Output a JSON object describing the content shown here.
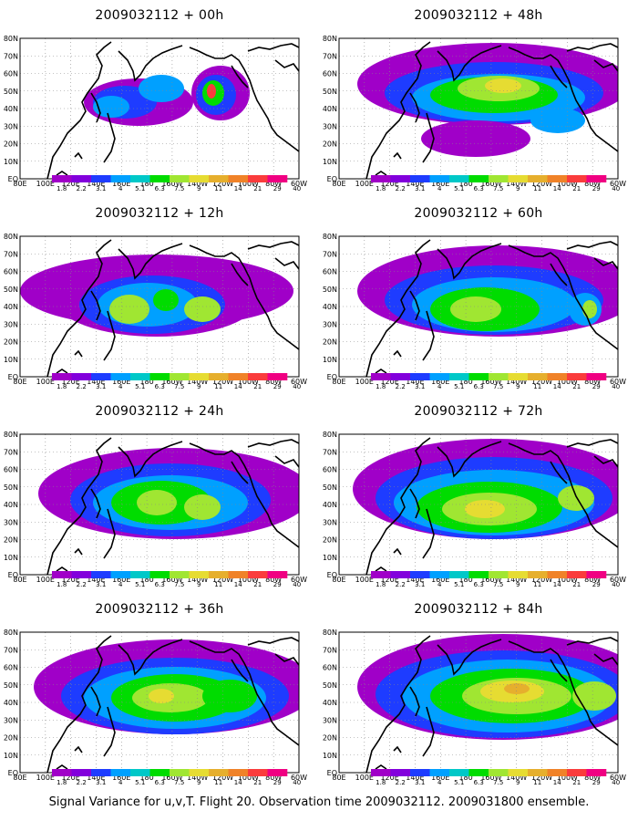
{
  "panels": [
    {
      "title": "2009032112 + 00h"
    },
    {
      "title": "2009032112 + 48h"
    },
    {
      "title": "2009032112 + 12h"
    },
    {
      "title": "2009032112 + 60h"
    },
    {
      "title": "2009032112 + 24h"
    },
    {
      "title": "2009032112 + 72h"
    },
    {
      "title": "2009032112 + 36h"
    },
    {
      "title": "2009032112 + 84h"
    }
  ],
  "lat_labels": [
    "EQ",
    "10N",
    "20N",
    "30N",
    "40N",
    "50N",
    "60N",
    "70N",
    "80N"
  ],
  "lon_labels": [
    "80E",
    "100E",
    "120E",
    "140E",
    "160E",
    "180",
    "160W",
    "140W",
    "120W",
    "100W",
    "80W",
    "60W"
  ],
  "colorbar": {
    "labels": [
      "1.8",
      "2.2",
      "3.1",
      "4",
      "5.1",
      "6.3",
      "7.5",
      "9",
      "11",
      "14",
      "21",
      "29",
      "40"
    ],
    "colors": [
      "#a000c8",
      "#8200dc",
      "#1e3cff",
      "#00a0ff",
      "#00c8c8",
      "#00dc00",
      "#a0e632",
      "#e6dc32",
      "#e6af2d",
      "#f08228",
      "#fa3c3c",
      "#f00082"
    ]
  },
  "caption": "Signal Variance for u,v,T. Flight 20. Observation time 2009032112. 2009031800 ensemble."
}
